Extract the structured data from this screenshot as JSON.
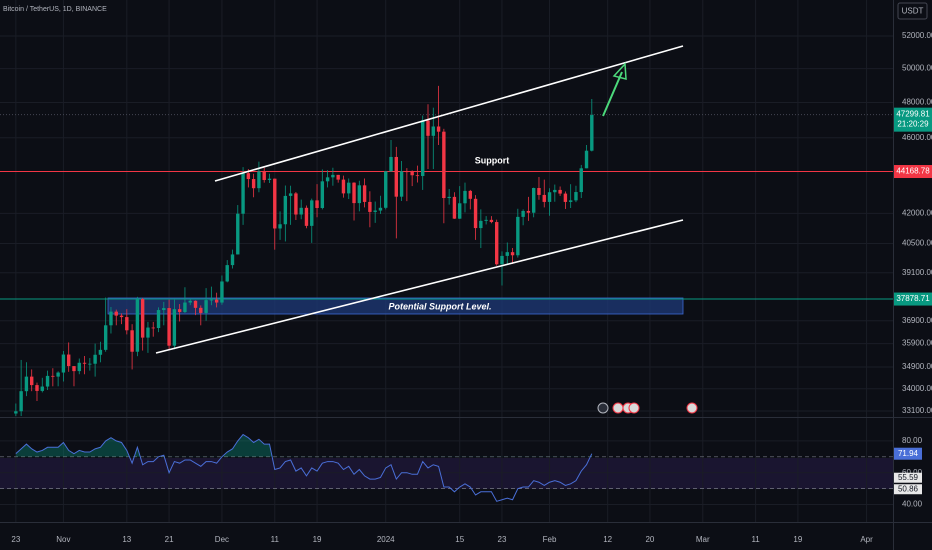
{
  "chart_data": {
    "type": "candlestick",
    "title": "Bitcoin / TetherUS, 1D, BINANCE",
    "currency": "USDT",
    "x": [
      "2023-10-23",
      "2023-10-24",
      "2023-10-25",
      "2023-10-26",
      "2023-10-27",
      "2023-10-28",
      "2023-10-29",
      "2023-10-30",
      "2023-10-31",
      "2023-11-01",
      "2023-11-02",
      "2023-11-03",
      "2023-11-04",
      "2023-11-05",
      "2023-11-06",
      "2023-11-07",
      "2023-11-08",
      "2023-11-09",
      "2023-11-10",
      "2023-11-11",
      "2023-11-12",
      "2023-11-13",
      "2023-11-14",
      "2023-11-15",
      "2023-11-16",
      "2023-11-17",
      "2023-11-18",
      "2023-11-19",
      "2023-11-20",
      "2023-11-21",
      "2023-11-22",
      "2023-11-23",
      "2023-11-24",
      "2023-11-25",
      "2023-11-26",
      "2023-11-27",
      "2023-11-28",
      "2023-11-29",
      "2023-11-30",
      "2023-12-01",
      "2023-12-02",
      "2023-12-03",
      "2023-12-04",
      "2023-12-05",
      "2023-12-06",
      "2023-12-07",
      "2023-12-08",
      "2023-12-09",
      "2023-12-10",
      "2023-12-11",
      "2023-12-12",
      "2023-12-13",
      "2023-12-14",
      "2023-12-15",
      "2023-12-16",
      "2023-12-17",
      "2023-12-18",
      "2023-12-19",
      "2023-12-20",
      "2023-12-21",
      "2023-12-22",
      "2023-12-23",
      "2023-12-24",
      "2023-12-25",
      "2023-12-26",
      "2023-12-27",
      "2023-12-28",
      "2023-12-29",
      "2023-12-30",
      "2023-12-31",
      "2024-01-01",
      "2024-01-02",
      "2024-01-03",
      "2024-01-04",
      "2024-01-05",
      "2024-01-06",
      "2024-01-07",
      "2024-01-08",
      "2024-01-09",
      "2024-01-10",
      "2024-01-11",
      "2024-01-12",
      "2024-01-13",
      "2024-01-14",
      "2024-01-15",
      "2024-01-16",
      "2024-01-17",
      "2024-01-18",
      "2024-01-19",
      "2024-01-20",
      "2024-01-21",
      "2024-01-22",
      "2024-01-23",
      "2024-01-24",
      "2024-01-25",
      "2024-01-26",
      "2024-01-27",
      "2024-01-28",
      "2024-01-29",
      "2024-01-30",
      "2024-01-31",
      "2024-02-01",
      "2024-02-02",
      "2024-02-03",
      "2024-02-04",
      "2024-02-05",
      "2024-02-06",
      "2024-02-07",
      "2024-02-08",
      "2024-02-09"
    ],
    "open": [
      33000,
      33090,
      33900,
      34500,
      34150,
      33910,
      34090,
      34530,
      34500,
      34670,
      35430,
      34940,
      34730,
      35080,
      35040,
      35040,
      35420,
      35630,
      36700,
      37310,
      37130,
      37065,
      36480,
      35550,
      37880,
      36160,
      36600,
      36580,
      37380,
      37470,
      35810,
      37420,
      37290,
      37720,
      37800,
      37480,
      37250,
      37830,
      37850,
      37720,
      38690,
      39460,
      39970,
      41980,
      44080,
      43770,
      43290,
      44170,
      43720,
      43790,
      41240,
      41450,
      42890,
      43020,
      41940,
      42280,
      41370,
      42660,
      42270,
      43650,
      43860,
      43990,
      43740,
      43020,
      43580,
      42520,
      43440,
      42580,
      42070,
      42140,
      42280,
      44180,
      44950,
      42850,
      44180,
      44160,
      43970,
      43930,
      46970,
      46110,
      46630,
      46340,
      42780,
      42840,
      41730,
      42510,
      43150,
      42740,
      41260,
      41620,
      41670,
      41560,
      39500,
      39900,
      40080,
      39930,
      41820,
      42120,
      42030,
      43300,
      42940,
      42580,
      43080,
      43200,
      43010,
      42580,
      42660,
      43090,
      44340,
      45290
    ],
    "high": [
      33400,
      35200,
      35100,
      34800,
      34250,
      34450,
      34750,
      34850,
      34720,
      35580,
      35950,
      34940,
      35260,
      35370,
      35280,
      35900,
      35980,
      37950,
      37520,
      37400,
      37230,
      37420,
      36750,
      37980,
      37930,
      36850,
      36850,
      37500,
      37750,
      37850,
      37850,
      37650,
      38420,
      37900,
      37820,
      37590,
      38380,
      38450,
      38170,
      38970,
      39700,
      40200,
      42420,
      44400,
      44300,
      44050,
      44700,
      44370,
      44050,
      43800,
      42100,
      43430,
      43420,
      43090,
      42700,
      42400,
      42750,
      43500,
      44280,
      44240,
      44370,
      43990,
      43950,
      43800,
      43600,
      43680,
      43800,
      43130,
      42600,
      42900,
      44190,
      45880,
      45500,
      44730,
      44350,
      44230,
      44480,
      47250,
      47900,
      47700,
      48970,
      46500,
      43250,
      43080,
      43400,
      43580,
      43200,
      42930,
      42200,
      41860,
      41860,
      41680,
      40120,
      40550,
      40280,
      42230,
      42200,
      42840,
      43320,
      43880,
      43740,
      43290,
      43480,
      43380,
      43120,
      43500,
      43420,
      44520,
      45600,
      48200
    ],
    "low": [
      32900,
      32900,
      33700,
      33900,
      33500,
      33850,
      33950,
      34100,
      34100,
      34300,
      34700,
      34100,
      34600,
      34600,
      34750,
      34500,
      35100,
      35550,
      36340,
      36700,
      36750,
      36300,
      34800,
      35360,
      35600,
      35500,
      36200,
      36400,
      36700,
      35650,
      35650,
      36870,
      37250,
      37600,
      37150,
      36700,
      36900,
      37600,
      37500,
      37620,
      38650,
      39300,
      39970,
      41420,
      43330,
      42820,
      43080,
      43580,
      43560,
      40200,
      40680,
      40600,
      41420,
      41660,
      41700,
      41250,
      40530,
      41800,
      42200,
      43330,
      43420,
      43580,
      42800,
      42730,
      41640,
      42100,
      42300,
      41300,
      41520,
      41970,
      42200,
      44150,
      40750,
      42630,
      42620,
      43400,
      43590,
      43200,
      44300,
      44300,
      45600,
      41500,
      42440,
      41720,
      41720,
      42050,
      42200,
      40680,
      40280,
      41440,
      41500,
      39430,
      38500,
      39480,
      39510,
      39820,
      41400,
      41620,
      41800,
      42690,
      42300,
      41880,
      42590,
      42890,
      42220,
      42270,
      42570,
      42780,
      44340,
      45250
    ],
    "close": [
      33090,
      33900,
      34500,
      34150,
      33910,
      34090,
      34530,
      34500,
      34670,
      35430,
      34940,
      34730,
      35080,
      35040,
      35040,
      35420,
      35630,
      36700,
      37310,
      37130,
      37065,
      36480,
      35550,
      37880,
      36160,
      36600,
      36580,
      37380,
      37470,
      35810,
      37420,
      37290,
      37720,
      37800,
      37480,
      37250,
      37830,
      37850,
      37720,
      38690,
      39460,
      39970,
      41980,
      44080,
      43770,
      43290,
      44170,
      43720,
      43790,
      41240,
      41450,
      42890,
      43020,
      41940,
      42280,
      41370,
      42660,
      42270,
      43650,
      43860,
      43990,
      43740,
      43020,
      43580,
      42520,
      43440,
      42580,
      42070,
      42140,
      42280,
      44180,
      44950,
      42850,
      44180,
      44160,
      43970,
      43930,
      46970,
      46110,
      46630,
      46340,
      42780,
      42840,
      41730,
      42510,
      43150,
      42740,
      41260,
      41620,
      41670,
      41560,
      39500,
      39900,
      40080,
      39930,
      41820,
      42120,
      42030,
      43300,
      42940,
      42580,
      43080,
      43200,
      43010,
      42580,
      42660,
      43090,
      44340,
      45290,
      47299.81
    ],
    "countdown": "21:20:29",
    "up_color": "#089981",
    "down_color": "#f23645",
    "log_scale": true,
    "ylim": [
      32862,
      54305
    ],
    "yticks": [
      {
        "value": 33100,
        "label": "33100.00"
      },
      {
        "value": 34000,
        "label": "34000.00"
      },
      {
        "value": 34900,
        "label": "34900.00"
      },
      {
        "value": 35900,
        "label": "35900.00"
      },
      {
        "value": 36900,
        "label": "36900.00"
      },
      {
        "value": 39100,
        "label": "39100.00"
      },
      {
        "value": 40500,
        "label": "40500.00"
      },
      {
        "value": 42000,
        "label": "42000.00"
      },
      {
        "value": 46000,
        "label": "46000.00"
      },
      {
        "value": 48000,
        "label": "48000.00"
      },
      {
        "value": 50000,
        "label": "50000.00"
      },
      {
        "value": 52000,
        "label": "52000.00"
      }
    ],
    "xlim": [
      "2023-10-20",
      "2024-04-06"
    ],
    "xticks": [
      {
        "value": "2023-10-23",
        "label": "23"
      },
      {
        "value": "2023-11-01",
        "label": "Nov"
      },
      {
        "value": "2023-11-13",
        "label": "13"
      },
      {
        "value": "2023-11-21",
        "label": "21"
      },
      {
        "value": "2023-12-01",
        "label": "Dec"
      },
      {
        "value": "2023-12-11",
        "label": "11"
      },
      {
        "value": "2023-12-19",
        "label": "19"
      },
      {
        "value": "2024-01-01",
        "label": "2024"
      },
      {
        "value": "2024-01-15",
        "label": "15"
      },
      {
        "value": "2024-01-23",
        "label": "23"
      },
      {
        "value": "2024-02-01",
        "label": "Feb"
      },
      {
        "value": "2024-02-12",
        "label": "12"
      },
      {
        "value": "2024-02-20",
        "label": "20"
      },
      {
        "value": "2024-03-01",
        "label": "Mar"
      },
      {
        "value": "2024-03-11",
        "label": "11"
      },
      {
        "value": "2024-03-19",
        "label": "19"
      },
      {
        "value": "2024-04-01",
        "label": "Apr"
      }
    ],
    "hlines": [
      {
        "value": 44168.78,
        "color": "#f23645"
      },
      {
        "value": 37878.71,
        "color": "#089981"
      }
    ],
    "annotations": [
      "Support",
      "Potential Support Level."
    ],
    "rsi": {
      "values": [
        72,
        75,
        78,
        75,
        73,
        74,
        76,
        76,
        76,
        79,
        74,
        72,
        74,
        73,
        73,
        75,
        76,
        80,
        82,
        80,
        79,
        74,
        66,
        76,
        65,
        67,
        67,
        70,
        71,
        60,
        67,
        66,
        68,
        68,
        66,
        64,
        67,
        67,
        66,
        70,
        73,
        75,
        80,
        84,
        82,
        79,
        81,
        78,
        78,
        62,
        63,
        67,
        68,
        61,
        63,
        58,
        63,
        61,
        66,
        67,
        67,
        66,
        62,
        64,
        59,
        62,
        58,
        56,
        56,
        57,
        63,
        65,
        56,
        60,
        60,
        59,
        59,
        67,
        63,
        65,
        64,
        51,
        51,
        48,
        51,
        53,
        51,
        46,
        48,
        48,
        48,
        42,
        43,
        44,
        43,
        50,
        51,
        51,
        55,
        54,
        52,
        54,
        55,
        54,
        52,
        53,
        55,
        61,
        65,
        71.94
      ],
      "color": "#4a6fd8",
      "ylim": [
        29,
        94.4
      ],
      "yticks": [
        {
          "value": 80,
          "label": "80.00"
        },
        {
          "value": 60,
          "label": "60.00"
        },
        {
          "value": 40,
          "label": "40.00"
        }
      ],
      "bands": [
        70,
        50
      ],
      "markers": [
        55.59,
        50.86
      ]
    }
  }
}
